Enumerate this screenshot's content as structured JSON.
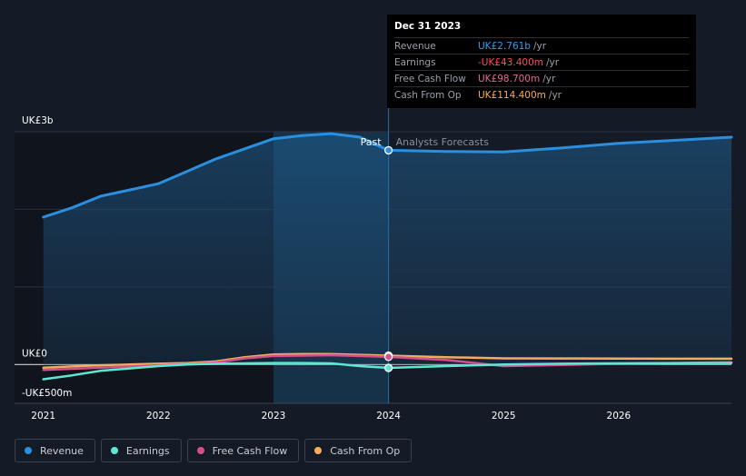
{
  "tooltip": {
    "date": "Dec 31 2023",
    "rows": [
      {
        "label": "Revenue",
        "value": "UK£2.761b",
        "unit": "/yr",
        "color": "#3b9be8"
      },
      {
        "label": "Earnings",
        "value": "-UK£43.400m",
        "unit": "/yr",
        "color": "#ff4b55"
      },
      {
        "label": "Free Cash Flow",
        "value": "UK£98.700m",
        "unit": "/yr",
        "color": "#e4679c"
      },
      {
        "label": "Cash From Op",
        "value": "UK£114.400m",
        "unit": "/yr",
        "color": "#f4ad5c"
      }
    ]
  },
  "legend": [
    {
      "label": "Revenue",
      "color": "#2b8fe0"
    },
    {
      "label": "Earnings",
      "color": "#5ee7d3"
    },
    {
      "label": "Free Cash Flow",
      "color": "#d2508c"
    },
    {
      "label": "Cash From Op",
      "color": "#f4ad5c"
    }
  ],
  "chart_data": {
    "type": "line",
    "title": "",
    "xlabel": "",
    "ylabel": "",
    "y_tick_labels": [
      "UK£3b",
      "UK£0",
      "-UK£500m"
    ],
    "x_tick_labels": [
      "2021",
      "2022",
      "2023",
      "2024",
      "2025",
      "2026"
    ],
    "x_ticks": [
      2021,
      2022,
      2023,
      2024,
      2025,
      2026
    ],
    "xlim": [
      2020.75,
      2026.98
    ],
    "ylim": [
      -500,
      3000
    ],
    "past_label": "Past",
    "forecast_label": "Analysts Forecasts",
    "divider_x": 2024.0,
    "highlight_range": [
      2023.0,
      2024.0
    ],
    "series": [
      {
        "name": "Revenue",
        "color": "#2b8fe0",
        "area": true,
        "points": [
          [
            2021.0,
            1900
          ],
          [
            2021.25,
            2020
          ],
          [
            2021.5,
            2170
          ],
          [
            2021.75,
            2250
          ],
          [
            2022.0,
            2330
          ],
          [
            2022.25,
            2490
          ],
          [
            2022.5,
            2650
          ],
          [
            2022.75,
            2780
          ],
          [
            2023.0,
            2910
          ],
          [
            2023.25,
            2950
          ],
          [
            2023.5,
            2975
          ],
          [
            2023.75,
            2930
          ],
          [
            2024.0,
            2761
          ],
          [
            2024.5,
            2745
          ],
          [
            2025.0,
            2740
          ],
          [
            2025.5,
            2790
          ],
          [
            2026.0,
            2850
          ],
          [
            2026.5,
            2890
          ],
          [
            2026.98,
            2930
          ]
        ]
      },
      {
        "name": "Earnings",
        "color": "#5ee7d3",
        "area": false,
        "points": [
          [
            2021.0,
            -190
          ],
          [
            2021.25,
            -140
          ],
          [
            2021.5,
            -80
          ],
          [
            2021.75,
            -50
          ],
          [
            2022.0,
            -20
          ],
          [
            2022.25,
            0
          ],
          [
            2022.5,
            10
          ],
          [
            2022.75,
            15
          ],
          [
            2023.0,
            20
          ],
          [
            2023.25,
            20
          ],
          [
            2023.5,
            15
          ],
          [
            2023.75,
            -20
          ],
          [
            2024.0,
            -43.4
          ],
          [
            2024.5,
            -20
          ],
          [
            2025.0,
            0
          ],
          [
            2025.5,
            10
          ],
          [
            2026.0,
            15
          ],
          [
            2026.5,
            18
          ],
          [
            2026.98,
            20
          ]
        ]
      },
      {
        "name": "Free Cash Flow",
        "color": "#d2508c",
        "area": false,
        "points": [
          [
            2021.0,
            -70
          ],
          [
            2021.25,
            -55
          ],
          [
            2021.5,
            -40
          ],
          [
            2021.75,
            -25
          ],
          [
            2022.0,
            -10
          ],
          [
            2022.25,
            5
          ],
          [
            2022.5,
            25
          ],
          [
            2022.75,
            80
          ],
          [
            2023.0,
            110
          ],
          [
            2023.25,
            115
          ],
          [
            2023.5,
            120
          ],
          [
            2023.75,
            110
          ],
          [
            2024.0,
            98.7
          ],
          [
            2024.5,
            60
          ],
          [
            2025.0,
            -20
          ],
          [
            2025.5,
            -5
          ],
          [
            2026.0,
            10
          ],
          [
            2026.5,
            20
          ],
          [
            2026.98,
            30
          ]
        ]
      },
      {
        "name": "Cash From Op",
        "color": "#f4ad5c",
        "area": false,
        "points": [
          [
            2021.0,
            -40
          ],
          [
            2021.25,
            -25
          ],
          [
            2021.5,
            -10
          ],
          [
            2021.75,
            0
          ],
          [
            2022.0,
            10
          ],
          [
            2022.25,
            20
          ],
          [
            2022.5,
            40
          ],
          [
            2022.75,
            95
          ],
          [
            2023.0,
            130
          ],
          [
            2023.25,
            135
          ],
          [
            2023.5,
            135
          ],
          [
            2023.75,
            125
          ],
          [
            2024.0,
            114.4
          ],
          [
            2024.5,
            95
          ],
          [
            2025.0,
            80
          ],
          [
            2025.5,
            78
          ],
          [
            2026.0,
            77
          ],
          [
            2026.5,
            75
          ],
          [
            2026.98,
            75
          ]
        ]
      }
    ]
  }
}
